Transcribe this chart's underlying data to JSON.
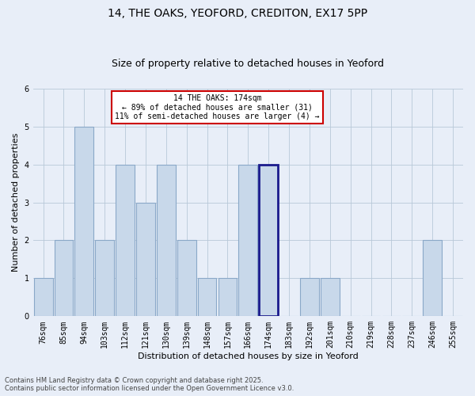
{
  "title1": "14, THE OAKS, YEOFORD, CREDITON, EX17 5PP",
  "title2": "Size of property relative to detached houses in Yeoford",
  "xlabel": "Distribution of detached houses by size in Yeoford",
  "ylabel": "Number of detached properties",
  "categories": [
    "76sqm",
    "85sqm",
    "94sqm",
    "103sqm",
    "112sqm",
    "121sqm",
    "130sqm",
    "139sqm",
    "148sqm",
    "157sqm",
    "166sqm",
    "174sqm",
    "183sqm",
    "192sqm",
    "201sqm",
    "210sqm",
    "219sqm",
    "228sqm",
    "237sqm",
    "246sqm",
    "255sqm"
  ],
  "values": [
    1,
    2,
    5,
    2,
    4,
    3,
    4,
    2,
    1,
    1,
    4,
    4,
    0,
    1,
    1,
    0,
    0,
    0,
    0,
    2,
    0
  ],
  "highlight_index": 11,
  "bar_color": "#c8d8ea",
  "bar_edge_color": "#8aa8c8",
  "highlight_edge_color": "#1a1a8c",
  "ylim": [
    0,
    6
  ],
  "yticks": [
    0,
    1,
    2,
    3,
    4,
    5,
    6
  ],
  "annotation_text": "14 THE OAKS: 174sqm\n← 89% of detached houses are smaller (31)\n11% of semi-detached houses are larger (4) →",
  "annotation_box_color": "#ffffff",
  "annotation_box_edge": "#cc0000",
  "footer": "Contains HM Land Registry data © Crown copyright and database right 2025.\nContains public sector information licensed under the Open Government Licence v3.0.",
  "bg_color": "#e8eef8",
  "plot_bg_color": "#e8eef8",
  "title1_fontsize": 10,
  "title2_fontsize": 9,
  "xlabel_fontsize": 8,
  "ylabel_fontsize": 8,
  "tick_fontsize": 7,
  "annot_fontsize": 7,
  "footer_fontsize": 6
}
